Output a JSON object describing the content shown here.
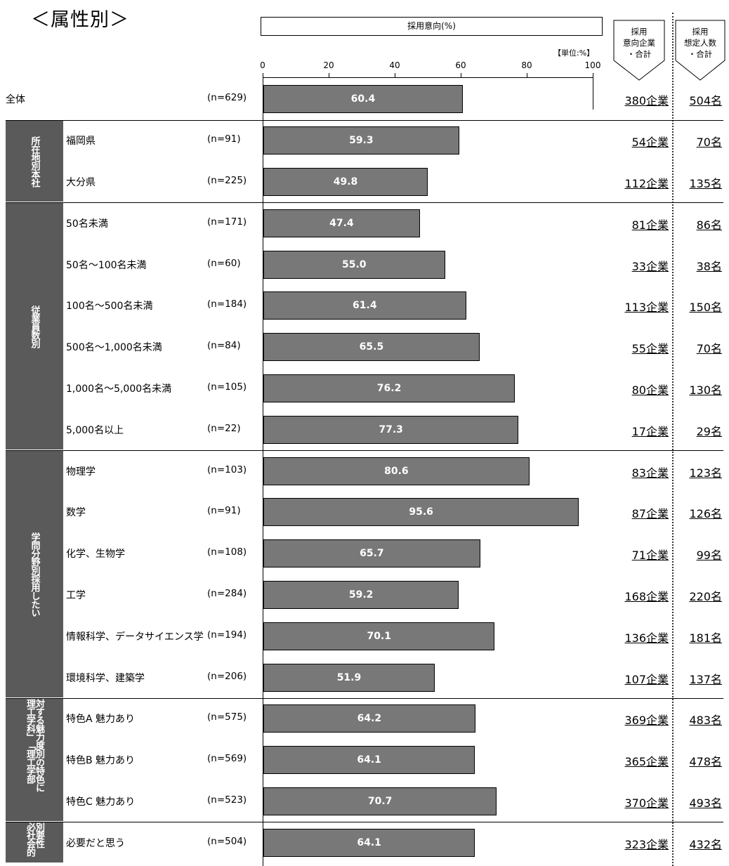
{
  "title": "＜属性別＞",
  "chart_caption": "採用意向(%)",
  "unit_label": "【単位:%】",
  "header_corp": [
    "採用",
    "意向企業",
    "・合計"
  ],
  "header_people": [
    "採用",
    "想定人数",
    "・合計"
  ],
  "chart_data": {
    "type": "bar",
    "orientation": "horizontal",
    "xlim": [
      0,
      100
    ],
    "x_ticks": [
      "0",
      "20",
      "40",
      "60",
      "80",
      "100"
    ],
    "rows": [
      {
        "group": "",
        "label": "全体",
        "n": "(n=629)",
        "value": 60.4,
        "value_label": "60.4",
        "corp": "380企業",
        "people": "504名"
      },
      {
        "group": "所在地別",
        "label": "福岡県",
        "n": "(n=91)",
        "value": 59.3,
        "value_label": "59.3",
        "corp": "54企業",
        "people": "70名"
      },
      {
        "group": "所在地別",
        "label": "大分県",
        "n": "(n=225)",
        "value": 49.8,
        "value_label": "49.8",
        "corp": "112企業",
        "people": "135名"
      },
      {
        "group": "従業員数別",
        "label": "50名未満",
        "n": "(n=171)",
        "value": 47.4,
        "value_label": "47.4",
        "corp": "81企業",
        "people": "86名"
      },
      {
        "group": "従業員数別",
        "label": "50名～100名未満",
        "n": "(n=60)",
        "value": 55.0,
        "value_label": "55.0",
        "corp": "33企業",
        "people": "38名"
      },
      {
        "group": "従業員数別",
        "label": "100名～500名未満",
        "n": "(n=184)",
        "value": 61.4,
        "value_label": "61.4",
        "corp": "113企業",
        "people": "150名"
      },
      {
        "group": "従業員数別",
        "label": "500名～1,000名未満",
        "n": "(n=84)",
        "value": 65.5,
        "value_label": "65.5",
        "corp": "55企業",
        "people": "70名"
      },
      {
        "group": "従業員数別",
        "label": "1,000名～5,000名未満",
        "n": "(n=105)",
        "value": 76.2,
        "value_label": "76.2",
        "corp": "80企業",
        "people": "130名"
      },
      {
        "group": "従業員数別",
        "label": "5,000名以上",
        "n": "(n=22)",
        "value": 77.3,
        "value_label": "77.3",
        "corp": "17企業",
        "people": "29名"
      },
      {
        "group": "採用したい学問分野別",
        "label": "物理学",
        "n": "(n=103)",
        "value": 80.6,
        "value_label": "80.6",
        "corp": "83企業",
        "people": "123名"
      },
      {
        "group": "採用したい学問分野別",
        "label": "数学",
        "n": "(n=91)",
        "value": 95.6,
        "value_label": "95.6",
        "corp": "87企業",
        "people": "126名"
      },
      {
        "group": "採用したい学問分野別",
        "label": "化学、生物学",
        "n": "(n=108)",
        "value": 65.7,
        "value_label": "65.7",
        "corp": "71企業",
        "people": "99名"
      },
      {
        "group": "採用したい学問分野別",
        "label": "工学",
        "n": "(n=284)",
        "value": 59.2,
        "value_label": "59.2",
        "corp": "168企業",
        "people": "220名"
      },
      {
        "group": "採用したい学問分野別",
        "label": "情報科学、データサイエンス学",
        "n": "(n=194)",
        "value": 70.1,
        "value_label": "70.1",
        "corp": "136企業",
        "people": "181名"
      },
      {
        "group": "採用したい学問分野別",
        "label": "環境科学、建築学",
        "n": "(n=206)",
        "value": 51.9,
        "value_label": "51.9",
        "corp": "107企業",
        "people": "137名"
      },
      {
        "group": "「理工学部理工学科」の特色に対する魅力度別",
        "label": "特色A 魅力あり",
        "n": "(n=575)",
        "value": 64.2,
        "value_label": "64.2",
        "corp": "369企業",
        "people": "483名"
      },
      {
        "group": "「理工学部理工学科」の特色に対する魅力度別",
        "label": "特色B 魅力あり",
        "n": "(n=569)",
        "value": 64.1,
        "value_label": "64.1",
        "corp": "365企業",
        "people": "478名"
      },
      {
        "group": "「理工学部理工学科」の特色に対する魅力度別",
        "label": "特色C 魅力あり",
        "n": "(n=523)",
        "value": 70.7,
        "value_label": "70.7",
        "corp": "370企業",
        "people": "493名"
      },
      {
        "group": "社会的必要性別",
        "label": "必要だと思う",
        "n": "(n=504)",
        "value": 64.1,
        "value_label": "64.1",
        "corp": "323企業",
        "people": "432名"
      }
    ]
  },
  "groups": [
    {
      "name": "所在地別",
      "lines": [
        "所在地別",
        "本社"
      ]
    },
    {
      "name": "従業員数別",
      "lines": [
        "従業員数別"
      ]
    },
    {
      "name": "採用したい学問分野別",
      "lines": [
        "学問分野別",
        "採用したい"
      ]
    },
    {
      "name": "「理工学部理工学科」の特色に対する魅力度別",
      "lines": [
        "対する魅力度別",
        "の特色に",
        "理工学科」",
        "「理工学部"
      ]
    },
    {
      "name": "社会的必要性別",
      "lines": [
        "別",
        "要性",
        "必社会的"
      ]
    }
  ]
}
